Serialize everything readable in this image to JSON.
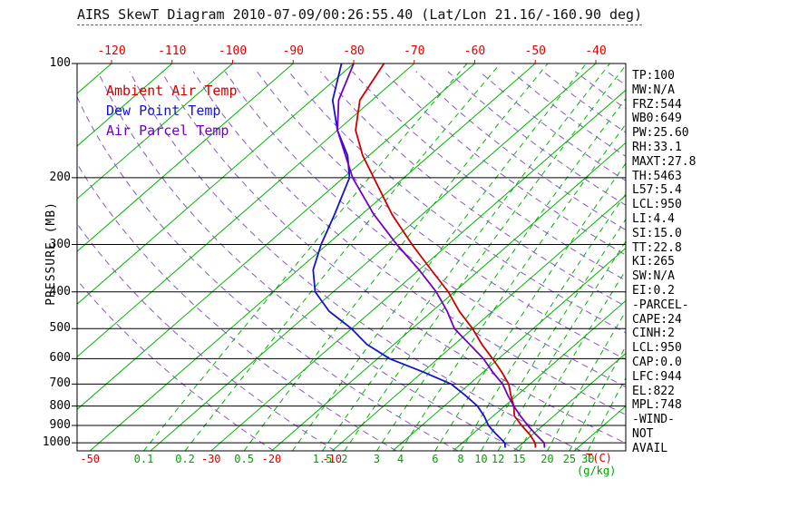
{
  "title": "AIRS SkewT Diagram 2010-07-09/00:26:55.40 (Lat/Lon 21.16/-160.90 deg)",
  "legend": [
    {
      "label": "Ambient Air Temp",
      "color": "#cc0000"
    },
    {
      "label": "Dew Point Temp",
      "color": "#1414cc"
    },
    {
      "label": "Air Parcel Temp",
      "color": "#7000c0"
    }
  ],
  "colors": {
    "isotherm": "#00b400",
    "mixing_ratio": "#00b400",
    "dry_adiabat": "#8855cc",
    "top_axis": "#dd0000",
    "bottom_temp": "#dd0000",
    "bottom_ratio": "#00a000",
    "frame": "#000000"
  },
  "axes": {
    "left": {
      "label": "PRESSURE (MB)",
      "ticks": [
        100,
        200,
        300,
        400,
        500,
        600,
        700,
        800,
        900,
        1000
      ]
    },
    "top": {
      "ticks": [
        -120,
        -110,
        -100,
        -90,
        -80,
        -70,
        -60,
        -50,
        -40
      ]
    },
    "bottom": {
      "temp_ticks": [
        -50,
        -30,
        -20,
        -10
      ],
      "temp_caption": "T(C)",
      "ratio_ticks": [
        0.1,
        0.2,
        0.5,
        1.5,
        2,
        3,
        4,
        6,
        8,
        10,
        12,
        15,
        20,
        25,
        30
      ],
      "ratio_caption": "(g/kg)"
    }
  },
  "stats": [
    "TP:100",
    "MW:N/A",
    "FRZ:544",
    "WB0:649",
    "PW:25.60",
    "RH:33.1",
    "MAXT:27.8",
    "TH:5463",
    "L57:5.4",
    "LCL:950",
    "LI:4.4",
    "SI:15.0",
    "TT:22.8",
    "KI:265",
    "SW:N/A",
    "EI:0.2",
    "-PARCEL-",
    "CAPE:24",
    "CINH:2",
    "LCL:950",
    "CAP:0.0",
    "LFC:944",
    "EL:822",
    "MPL:748",
    "-WIND-",
    "NOT",
    "AVAIL"
  ],
  "chart_data": {
    "type": "line",
    "variant": "skew-t-log-p",
    "pressure_top_mb": 100,
    "pressure_bottom_mb": 1050,
    "top_axis_temp_range_c": [
      -120,
      -40
    ],
    "isotherms_c": {
      "min": -130,
      "max": 40,
      "step": 10
    },
    "dry_adiabats_k": {
      "min": 250,
      "max": 460,
      "step": 10
    },
    "mixing_ratio_lines_gkg": [
      0.1,
      0.2,
      0.5,
      1,
      1.5,
      2,
      3,
      4,
      6,
      8,
      10,
      12,
      15,
      20,
      25,
      30
    ],
    "series": [
      {
        "name": "Ambient Air Temp",
        "color": "#cc0000",
        "points_p_t": [
          [
            1030,
            23
          ],
          [
            1000,
            22
          ],
          [
            950,
            19.5
          ],
          [
            925,
            18
          ],
          [
            900,
            16.5
          ],
          [
            850,
            13.5
          ],
          [
            800,
            11.5
          ],
          [
            750,
            9
          ],
          [
            700,
            6.5
          ],
          [
            650,
            3
          ],
          [
            600,
            -1
          ],
          [
            550,
            -5.5
          ],
          [
            500,
            -10
          ],
          [
            450,
            -15.5
          ],
          [
            400,
            -21
          ],
          [
            350,
            -28
          ],
          [
            300,
            -36
          ],
          [
            250,
            -45
          ],
          [
            200,
            -55
          ],
          [
            175,
            -61
          ],
          [
            150,
            -67
          ],
          [
            125,
            -72
          ],
          [
            100,
            -75
          ]
        ]
      },
      {
        "name": "Dew Point Temp",
        "color": "#1414cc",
        "points_p_t": [
          [
            1030,
            18
          ],
          [
            1000,
            17
          ],
          [
            950,
            14
          ],
          [
            925,
            12.5
          ],
          [
            900,
            11
          ],
          [
            850,
            8.5
          ],
          [
            800,
            5.5
          ],
          [
            750,
            1.5
          ],
          [
            700,
            -3
          ],
          [
            650,
            -10
          ],
          [
            600,
            -18
          ],
          [
            550,
            -24.5
          ],
          [
            500,
            -30
          ],
          [
            450,
            -37
          ],
          [
            400,
            -43
          ],
          [
            350,
            -47.5
          ],
          [
            300,
            -51
          ],
          [
            250,
            -54.5
          ],
          [
            200,
            -59
          ],
          [
            175,
            -63.5
          ],
          [
            150,
            -70
          ],
          [
            125,
            -76.5
          ],
          [
            100,
            -82
          ]
        ]
      },
      {
        "name": "Air Parcel Temp",
        "color": "#7000c0",
        "points_p_t": [
          [
            1030,
            24.5
          ],
          [
            1000,
            23.5
          ],
          [
            950,
            20.5
          ],
          [
            900,
            17.5
          ],
          [
            850,
            14.5
          ],
          [
            800,
            11.5
          ],
          [
            750,
            8.5
          ],
          [
            700,
            5.5
          ],
          [
            650,
            1.5
          ],
          [
            600,
            -2.5
          ],
          [
            550,
            -7.5
          ],
          [
            500,
            -13
          ],
          [
            450,
            -17.5
          ],
          [
            400,
            -23
          ],
          [
            350,
            -30
          ],
          [
            300,
            -38.5
          ],
          [
            250,
            -48
          ],
          [
            200,
            -58.5
          ],
          [
            150,
            -70
          ],
          [
            125,
            -75.5
          ],
          [
            100,
            -80
          ]
        ]
      }
    ]
  }
}
